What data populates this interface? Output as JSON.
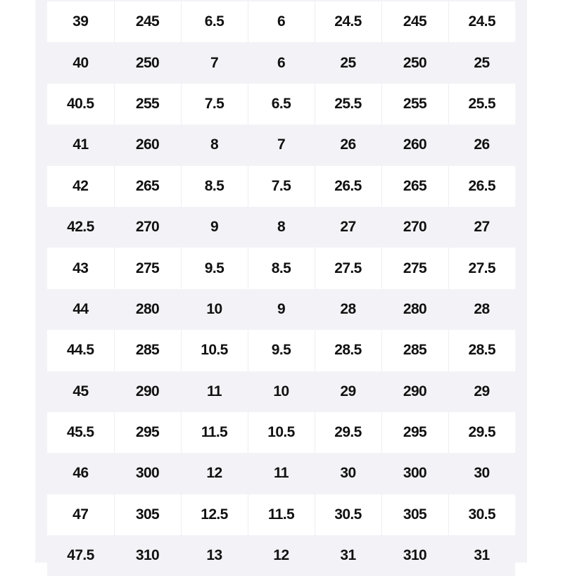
{
  "table": {
    "rows": [
      [
        "39",
        "245",
        "6.5",
        "6",
        "24.5",
        "245",
        "24.5"
      ],
      [
        "40",
        "250",
        "7",
        "6",
        "25",
        "250",
        "25"
      ],
      [
        "40.5",
        "255",
        "7.5",
        "6.5",
        "25.5",
        "255",
        "25.5"
      ],
      [
        "41",
        "260",
        "8",
        "7",
        "26",
        "260",
        "26"
      ],
      [
        "42",
        "265",
        "8.5",
        "7.5",
        "26.5",
        "265",
        "26.5"
      ],
      [
        "42.5",
        "270",
        "9",
        "8",
        "27",
        "270",
        "27"
      ],
      [
        "43",
        "275",
        "9.5",
        "8.5",
        "27.5",
        "275",
        "27.5"
      ],
      [
        "44",
        "280",
        "10",
        "9",
        "28",
        "280",
        "28"
      ],
      [
        "44.5",
        "285",
        "10.5",
        "9.5",
        "28.5",
        "285",
        "28.5"
      ],
      [
        "45",
        "290",
        "11",
        "10",
        "29",
        "290",
        "29"
      ],
      [
        "45.5",
        "295",
        "11.5",
        "10.5",
        "29.5",
        "295",
        "29.5"
      ],
      [
        "46",
        "300",
        "12",
        "11",
        "30",
        "300",
        "30"
      ],
      [
        "47",
        "305",
        "12.5",
        "11.5",
        "30.5",
        "305",
        "30.5"
      ],
      [
        "47.5",
        "310",
        "13",
        "12",
        "31",
        "310",
        "31"
      ]
    ]
  },
  "colors": {
    "panel": "#f3f3f7",
    "row_alt": "#ffffff",
    "text": "#111111"
  }
}
